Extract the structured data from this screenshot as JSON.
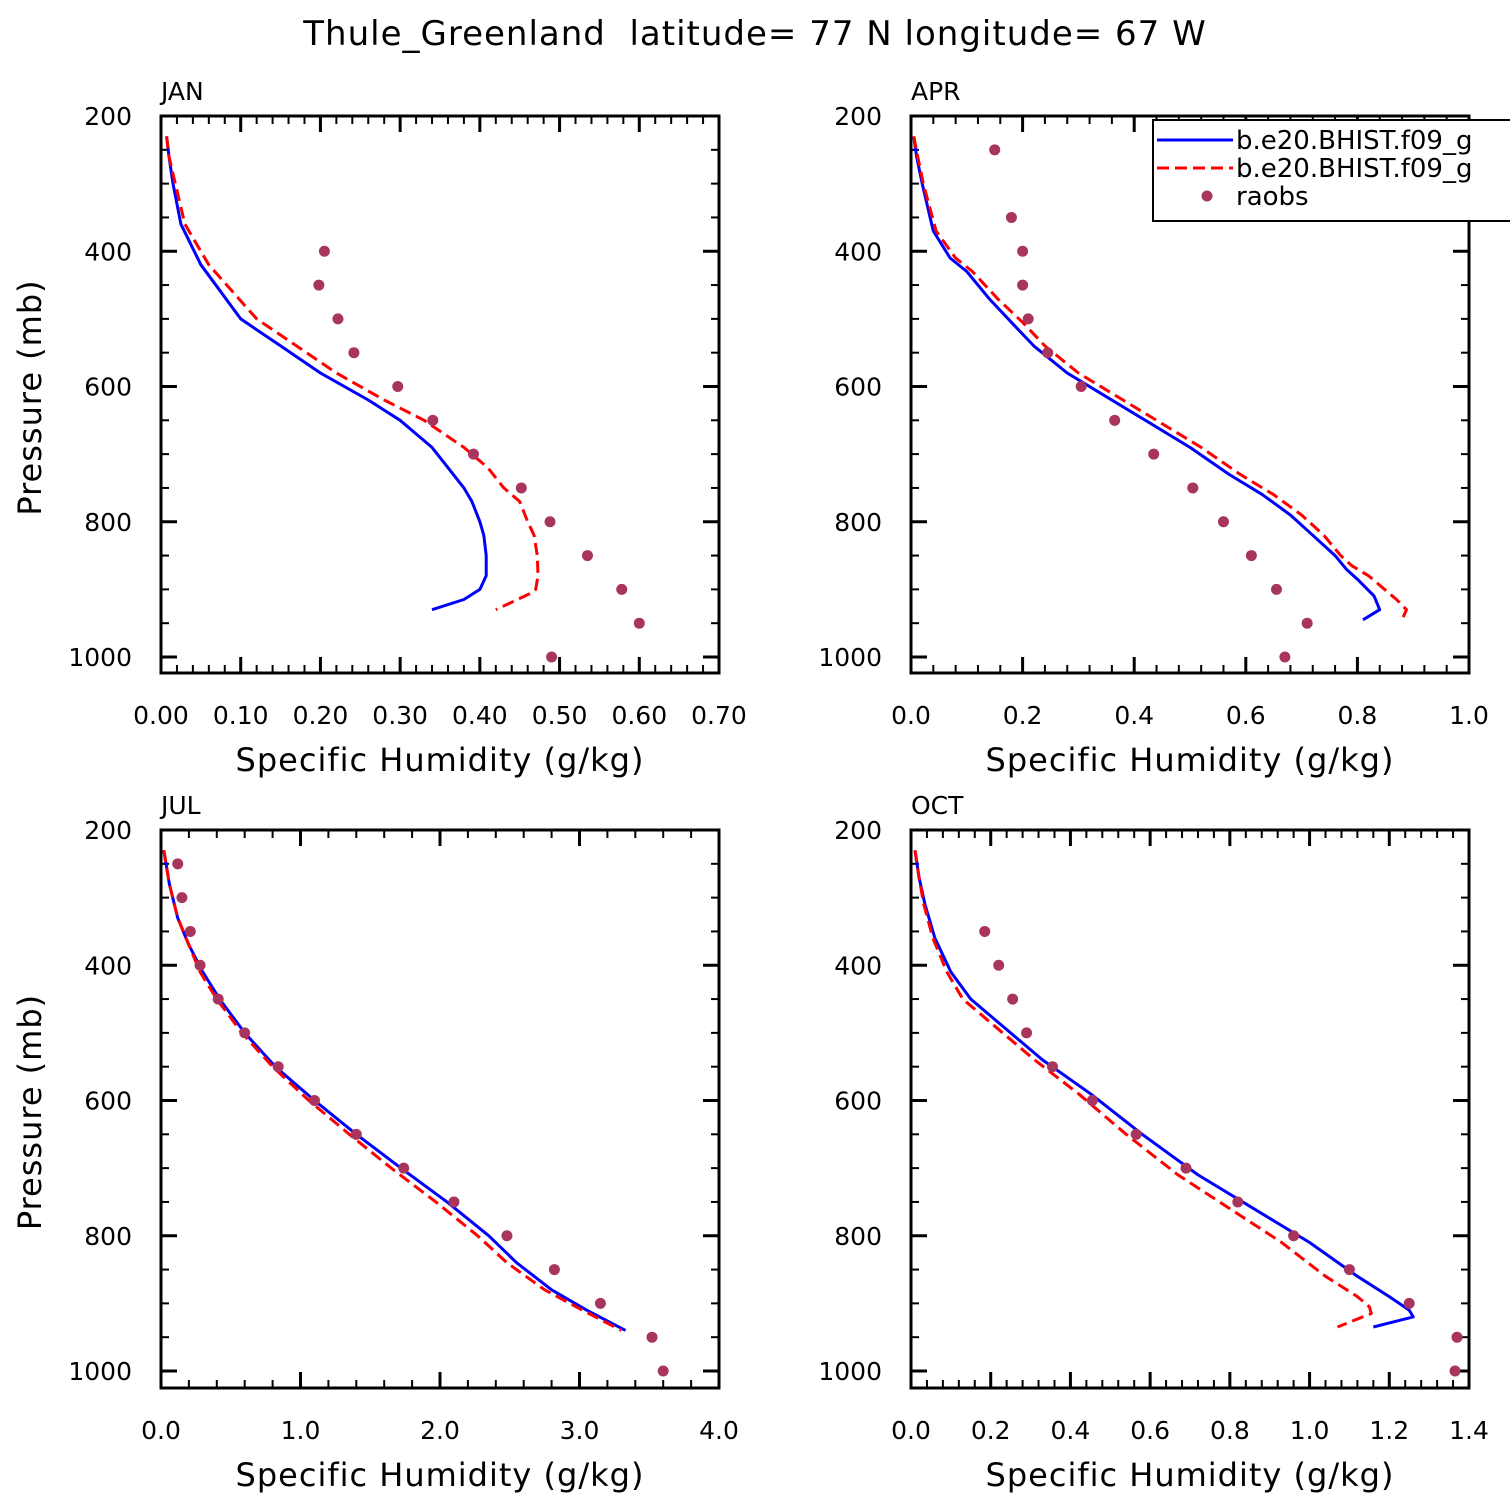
{
  "figure": {
    "title": "Thule_Greenland  latitude= 77 N longitude= 67 W"
  },
  "chart_data": [
    {
      "type": "line",
      "panel_title": "JAN",
      "xlabel": "Specific Humidity (g/kg)",
      "ylabel": "Pressure (mb)",
      "xlim": [
        0.0,
        0.7
      ],
      "ylim": [
        200,
        1025
      ],
      "y_inverted": true,
      "xticks": [
        "0.00",
        "0.10",
        "0.20",
        "0.30",
        "0.40",
        "0.50",
        "0.60",
        "0.70"
      ],
      "xtick_values": [
        0.0,
        0.1,
        0.2,
        0.3,
        0.4,
        0.5,
        0.6,
        0.7
      ],
      "yticks": [
        "200",
        "400",
        "600",
        "800",
        "1000"
      ],
      "ytick_values": [
        200,
        400,
        600,
        800,
        1000
      ],
      "grid": false,
      "series": [
        {
          "style": "solid",
          "color": "#0000ff",
          "x": [
            0.007,
            0.01,
            0.015,
            0.025,
            0.05,
            0.075,
            0.1,
            0.15,
            0.2,
            0.26,
            0.3,
            0.34,
            0.36,
            0.38,
            0.39,
            0.4,
            0.405,
            0.408,
            0.408,
            0.4,
            0.38,
            0.34
          ],
          "y": [
            230,
            260,
            300,
            360,
            420,
            460,
            500,
            540,
            580,
            620,
            650,
            690,
            720,
            750,
            770,
            800,
            820,
            850,
            880,
            900,
            915,
            930
          ]
        },
        {
          "style": "dashed",
          "color": "#ff0000",
          "x": [
            0.007,
            0.01,
            0.018,
            0.03,
            0.06,
            0.09,
            0.12,
            0.17,
            0.22,
            0.28,
            0.33,
            0.38,
            0.41,
            0.43,
            0.45,
            0.46,
            0.468,
            0.472,
            0.473,
            0.47,
            0.465,
            0.42
          ],
          "y": [
            230,
            260,
            300,
            360,
            420,
            460,
            500,
            540,
            580,
            620,
            650,
            690,
            720,
            750,
            770,
            800,
            820,
            850,
            880,
            900,
            905,
            930
          ]
        },
        {
          "name": "raobs",
          "style": "markers",
          "color": "#a8355e",
          "x": [
            0.205,
            0.198,
            0.222,
            0.242,
            0.297,
            0.341,
            0.392,
            0.452,
            0.488,
            0.535,
            0.578,
            0.6,
            0.49
          ],
          "y": [
            400,
            450,
            500,
            550,
            600,
            650,
            700,
            750,
            800,
            850,
            900,
            950,
            1000
          ]
        }
      ]
    },
    {
      "type": "line",
      "panel_title": "APR",
      "xlabel": "Specific Humidity (g/kg)",
      "ylabel": "",
      "xlim": [
        0.0,
        1.0
      ],
      "ylim": [
        200,
        1025
      ],
      "y_inverted": true,
      "xticks": [
        "0.0",
        "0.2",
        "0.4",
        "0.6",
        "0.8",
        "1.0"
      ],
      "xtick_values": [
        0.0,
        0.2,
        0.4,
        0.6,
        0.8,
        1.0
      ],
      "yticks": [
        "200",
        "400",
        "600",
        "800",
        "1000"
      ],
      "ytick_values": [
        200,
        400,
        600,
        800,
        1000
      ],
      "grid": false,
      "legend": {
        "position": "top-right",
        "entries": [
          {
            "label": "b.e20.BHIST.f09_g",
            "style": "solid",
            "color": "#0000ff"
          },
          {
            "label": "b.e20.BHIST.f09_g",
            "style": "dashed",
            "color": "#ff0000"
          },
          {
            "label": "raobs",
            "style": "markers",
            "color": "#a8355e"
          }
        ]
      },
      "series": [
        {
          "style": "solid",
          "color": "#0000ff",
          "x": [
            0.005,
            0.01,
            0.02,
            0.04,
            0.07,
            0.1,
            0.14,
            0.18,
            0.22,
            0.28,
            0.34,
            0.42,
            0.5,
            0.57,
            0.63,
            0.68,
            0.72,
            0.76,
            0.78,
            0.8,
            0.83,
            0.84,
            0.81
          ],
          "y": [
            230,
            260,
            300,
            370,
            410,
            430,
            470,
            505,
            540,
            580,
            610,
            650,
            690,
            730,
            760,
            790,
            820,
            850,
            870,
            885,
            910,
            930,
            945
          ]
        },
        {
          "style": "dashed",
          "color": "#ff0000",
          "x": [
            0.005,
            0.012,
            0.022,
            0.045,
            0.08,
            0.11,
            0.155,
            0.2,
            0.24,
            0.3,
            0.36,
            0.44,
            0.52,
            0.59,
            0.65,
            0.7,
            0.74,
            0.77,
            0.79,
            0.82,
            0.87,
            0.888,
            0.88
          ],
          "y": [
            230,
            260,
            300,
            370,
            410,
            430,
            470,
            505,
            540,
            580,
            610,
            650,
            690,
            730,
            760,
            790,
            820,
            850,
            865,
            880,
            915,
            930,
            945
          ]
        },
        {
          "name": "raobs",
          "style": "markers",
          "color": "#a8355e",
          "x": [
            0.15,
            0.18,
            0.2,
            0.2,
            0.21,
            0.245,
            0.305,
            0.365,
            0.435,
            0.505,
            0.56,
            0.61,
            0.655,
            0.71,
            0.67
          ],
          "y": [
            250,
            350,
            400,
            450,
            500,
            550,
            600,
            650,
            700,
            750,
            800,
            850,
            900,
            950,
            1000
          ]
        }
      ]
    },
    {
      "type": "line",
      "panel_title": "JUL",
      "xlabel": "Specific Humidity (g/kg)",
      "ylabel": "Pressure (mb)",
      "xlim": [
        0.0,
        4.0
      ],
      "ylim": [
        200,
        1025
      ],
      "y_inverted": true,
      "xticks": [
        "0.0",
        "1.0",
        "2.0",
        "3.0",
        "4.0"
      ],
      "xtick_values": [
        0.0,
        1.0,
        2.0,
        3.0,
        4.0
      ],
      "yticks": [
        "200",
        "400",
        "600",
        "800",
        "1000"
      ],
      "ytick_values": [
        200,
        400,
        600,
        800,
        1000
      ],
      "grid": false,
      "series": [
        {
          "style": "solid",
          "color": "#0000ff",
          "x": [
            0.02,
            0.06,
            0.12,
            0.2,
            0.3,
            0.42,
            0.6,
            0.82,
            1.1,
            1.4,
            1.72,
            2.05,
            2.35,
            2.55,
            2.8,
            3.05,
            3.33
          ],
          "y": [
            230,
            280,
            330,
            370,
            410,
            450,
            500,
            550,
            600,
            650,
            700,
            750,
            800,
            840,
            880,
            910,
            940
          ]
        },
        {
          "style": "dashed",
          "color": "#ff0000",
          "x": [
            0.02,
            0.06,
            0.12,
            0.2,
            0.28,
            0.4,
            0.58,
            0.8,
            1.06,
            1.35,
            1.65,
            1.97,
            2.27,
            2.48,
            2.75,
            3.02,
            3.3
          ],
          "y": [
            230,
            280,
            330,
            370,
            410,
            450,
            500,
            550,
            600,
            650,
            700,
            750,
            800,
            840,
            880,
            910,
            940
          ]
        },
        {
          "name": "raobs",
          "style": "markers",
          "color": "#a8355e",
          "x": [
            0.12,
            0.15,
            0.21,
            0.28,
            0.41,
            0.6,
            0.84,
            1.1,
            1.4,
            1.74,
            2.1,
            2.48,
            2.82,
            3.15,
            3.52,
            3.6
          ],
          "y": [
            250,
            300,
            350,
            400,
            450,
            500,
            550,
            600,
            650,
            700,
            750,
            800,
            850,
            900,
            950,
            1000
          ]
        }
      ]
    },
    {
      "type": "line",
      "panel_title": "OCT",
      "xlabel": "Specific Humidity (g/kg)",
      "ylabel": "",
      "xlim": [
        0.0,
        1.4
      ],
      "ylim": [
        200,
        1025
      ],
      "y_inverted": true,
      "xticks": [
        "0.0",
        "0.2",
        "0.4",
        "0.6",
        "0.8",
        "1.0",
        "1.2",
        "1.4"
      ],
      "xtick_values": [
        0.0,
        0.2,
        0.4,
        0.6,
        0.8,
        1.0,
        1.2,
        1.4
      ],
      "yticks": [
        "200",
        "400",
        "600",
        "800",
        "1000"
      ],
      "ytick_values": [
        200,
        400,
        600,
        800,
        1000
      ],
      "grid": false,
      "series": [
        {
          "style": "solid",
          "color": "#0000ff",
          "x": [
            0.01,
            0.02,
            0.035,
            0.06,
            0.1,
            0.15,
            0.19,
            0.25,
            0.33,
            0.45,
            0.58,
            0.72,
            0.86,
            1.0,
            1.12,
            1.2,
            1.25,
            1.26,
            1.16
          ],
          "y": [
            230,
            270,
            310,
            360,
            410,
            450,
            470,
            500,
            540,
            590,
            650,
            710,
            760,
            810,
            860,
            890,
            910,
            920,
            935
          ]
        },
        {
          "style": "dashed",
          "color": "#ff0000",
          "x": [
            0.01,
            0.02,
            0.032,
            0.055,
            0.09,
            0.13,
            0.17,
            0.23,
            0.31,
            0.42,
            0.54,
            0.67,
            0.8,
            0.93,
            1.04,
            1.12,
            1.15,
            1.155,
            1.07
          ],
          "y": [
            230,
            270,
            310,
            360,
            410,
            450,
            470,
            500,
            540,
            590,
            650,
            710,
            760,
            810,
            860,
            890,
            905,
            915,
            935
          ]
        },
        {
          "name": "raobs",
          "style": "markers",
          "color": "#a8355e",
          "x": [
            0.185,
            0.22,
            0.255,
            0.29,
            0.355,
            0.455,
            0.565,
            0.69,
            0.82,
            0.96,
            1.1,
            1.25,
            1.37,
            1.365
          ],
          "y": [
            350,
            400,
            450,
            500,
            550,
            600,
            650,
            700,
            750,
            800,
            850,
            900,
            950,
            1000
          ]
        }
      ]
    }
  ]
}
